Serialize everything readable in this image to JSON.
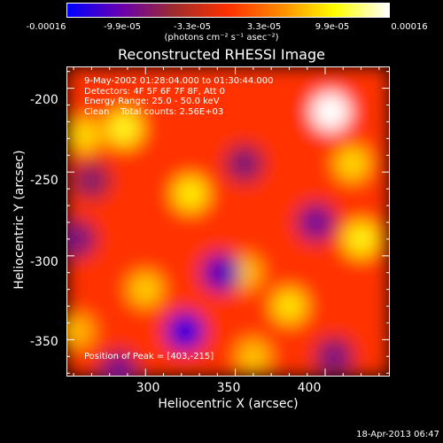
{
  "colorbar": {
    "ticks": [
      "-0.00016",
      "-9.9e-05",
      "-3.3e-05",
      "3.3e-05",
      "9.9e-05",
      "0.00016"
    ],
    "range": [
      -0.00016,
      0.00016
    ],
    "units": "(photons cm⁻² s⁻¹ asec⁻²)",
    "palette": [
      "#0000ff",
      "#6a00b0",
      "#9f2d2d",
      "#ff3000",
      "#ff8c00",
      "#ffff00",
      "#ffffff"
    ]
  },
  "chart_data": {
    "type": "heatmap",
    "title": "Reconstructed RHESSI Image",
    "xlabel": "Heliocentric X (arcsec)",
    "ylabel": "Heliocentric Y (arcsec)",
    "xlim": [
      256,
      436
    ],
    "ylim": [
      -372,
      -187
    ],
    "xticks": [
      "300",
      "350",
      "400"
    ],
    "yticks": [
      "-200",
      "-250",
      "-300",
      "-350"
    ],
    "annotations": [
      "9-May-2002 01:28:04.000 to 01:30:44.000",
      "Detectors: 4F 5F 6F 7F 8F, Att 0",
      "Energy Range: 25.0 - 50.0 keV",
      "Clean    Total counts: 2.56E+03"
    ],
    "peak_label": "Position of Peak = [403,-215]",
    "peak": [
      403,
      -215
    ],
    "sources": [
      {
        "x": 403,
        "y": -214,
        "value": 0.00016
      },
      {
        "x": 288,
        "y": -224,
        "value": 9e-05
      },
      {
        "x": 325,
        "y": -263,
        "value": 8e-05
      },
      {
        "x": 266,
        "y": -228,
        "value": 7e-05
      },
      {
        "x": 380,
        "y": -330,
        "value": 7.5e-05
      },
      {
        "x": 355,
        "y": -310,
        "value": 6e-05
      },
      {
        "x": 300,
        "y": -320,
        "value": 6.5e-05
      },
      {
        "x": 420,
        "y": -290,
        "value": 8.5e-05
      },
      {
        "x": 262,
        "y": -345,
        "value": 5.5e-05
      },
      {
        "x": 360,
        "y": -360,
        "value": 6e-05
      },
      {
        "x": 415,
        "y": -245,
        "value": 7e-05
      },
      {
        "x": 270,
        "y": -255,
        "value": -6e-05
      },
      {
        "x": 322,
        "y": -345,
        "value": -0.00012
      },
      {
        "x": 342,
        "y": -310,
        "value": -0.0001
      },
      {
        "x": 262,
        "y": -290,
        "value": -7e-05
      },
      {
        "x": 395,
        "y": -280,
        "value": -8e-05
      },
      {
        "x": 405,
        "y": -360,
        "value": -7e-05
      },
      {
        "x": 355,
        "y": -245,
        "value": -6.5e-05
      },
      {
        "x": 285,
        "y": -368,
        "value": -7.5e-05
      }
    ]
  },
  "footer": {
    "timestamp": "18-Apr-2013 06:47"
  }
}
